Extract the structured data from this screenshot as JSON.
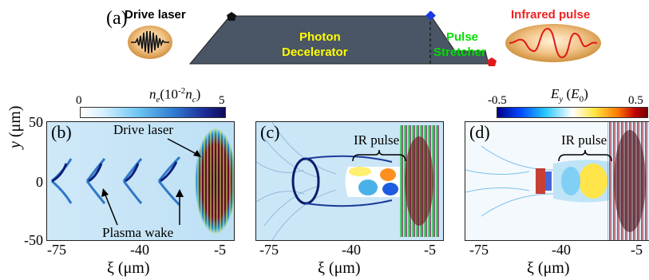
{
  "panel_a": {
    "label": "(a)",
    "drive_laser": "Drive laser",
    "photon": "Photon",
    "decelerator": "Decelerator",
    "pulse": "Pulse",
    "stretcher": "Stretcher",
    "infrared_pulse": "Infrared pulse"
  },
  "colorbar_density": {
    "label_main": "n",
    "label_sub": "e",
    "label_paren": "(10",
    "label_exp": "-2",
    "label_n": "n",
    "label_nsub": "c",
    "label_close": ")",
    "min": "0",
    "max": "5"
  },
  "colorbar_field": {
    "label_main": "E",
    "label_sub": "y",
    "label_paren": "(E",
    "label_psub": "0",
    "label_close": ")",
    "min": "-0.5",
    "max": "0.5"
  },
  "panel_b": {
    "label": "(b)",
    "drive_laser": "Drive laser",
    "plasma_wake": "Plasma wake"
  },
  "panel_c": {
    "label": "(c)",
    "ir_pulse": "IR pulse"
  },
  "panel_d": {
    "label": "(d)",
    "ir_pulse": "IR pulse"
  },
  "y_axis": {
    "label": "y",
    "unit": "(μm)",
    "ticks": [
      "50",
      "0",
      "-50"
    ]
  },
  "x_axis": {
    "label": "ξ (μm)",
    "ticks": [
      "-75",
      "-40",
      "-5"
    ]
  },
  "colors": {
    "decelerator": "#4a5565",
    "yellow_text": "#ffff00",
    "green_text": "#00dd00",
    "red_text": "#ee2222"
  }
}
